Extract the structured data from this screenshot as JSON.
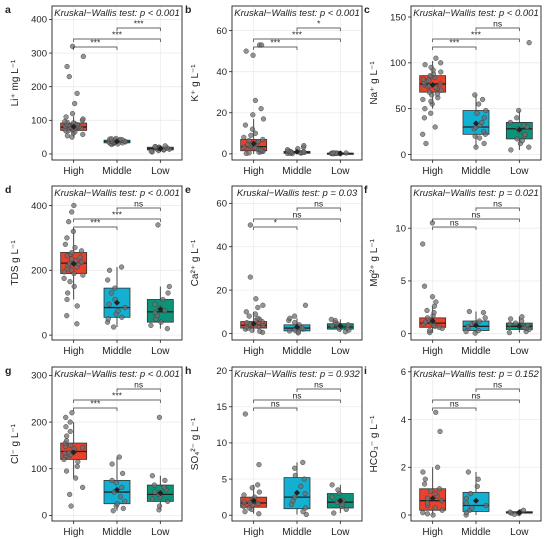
{
  "colors": {
    "High": "#e8412c",
    "Middle": "#14b0d2",
    "Low": "#0b9479"
  },
  "chart_data": [
    {
      "type": "box",
      "panel": "a",
      "ylabel": "Li⁺ mg L⁻¹",
      "test": "Kruskal−Wallis test: p < 0.001",
      "categories": [
        "High",
        "Middle",
        "Low"
      ],
      "yticks": [
        0,
        100,
        200,
        300,
        400
      ],
      "ylim": [
        -18,
        440
      ],
      "boxes": [
        {
          "q1": 70,
          "median": 80,
          "q3": 92,
          "wlo": 50,
          "whi": 112,
          "mean": 81
        },
        {
          "q1": 33,
          "median": 37,
          "q3": 41,
          "wlo": 28,
          "whi": 46,
          "mean": 37
        },
        {
          "q1": 12,
          "median": 16,
          "q3": 20,
          "wlo": 6,
          "whi": 25,
          "mean": 16
        }
      ],
      "points": [
        [
          62,
          66,
          68,
          70,
          72,
          74,
          75,
          76,
          78,
          79,
          80,
          81,
          82,
          83,
          85,
          86,
          87,
          88,
          90,
          92,
          94,
          96,
          100,
          104,
          110,
          120,
          58,
          54,
          50,
          150,
          180,
          230,
          260,
          290,
          320
        ],
        [
          28,
          30,
          31,
          32,
          33,
          34,
          35,
          36,
          36,
          37,
          38,
          38,
          39,
          40,
          41,
          42,
          43,
          44,
          45,
          46
        ],
        [
          6,
          8,
          10,
          12,
          13,
          14,
          15,
          16,
          17,
          18,
          18,
          19,
          20,
          21,
          22,
          24
        ]
      ],
      "brackets": [
        {
          "from": 0,
          "to": 1,
          "label": "***"
        },
        {
          "from": 0,
          "to": 2,
          "label": "***"
        },
        {
          "from": 1,
          "to": 2,
          "label": "***"
        }
      ]
    },
    {
      "type": "box",
      "panel": "b",
      "ylabel": "K⁺ g L⁻¹",
      "test": "Kruskal−Wallis test: p < 0.001",
      "categories": [
        "High",
        "Middle",
        "Low"
      ],
      "yticks": [
        0,
        20,
        40,
        60
      ],
      "ylim": [
        -3,
        72
      ],
      "boxes": [
        {
          "q1": 1.5,
          "median": 3.5,
          "q3": 7,
          "wlo": 0,
          "whi": 17,
          "mean": 5
        },
        {
          "q1": 0.3,
          "median": 0.7,
          "q3": 1.2,
          "wlo": 0.1,
          "whi": 2.5,
          "mean": 1
        },
        {
          "q1": 0.1,
          "median": 0.2,
          "q3": 0.3,
          "wlo": 0,
          "whi": 0.5,
          "mean": 0.2
        }
      ],
      "points": [
        [
          0.2,
          0.5,
          0.8,
          1,
          1.2,
          1.5,
          2,
          2.2,
          2.5,
          3,
          3.2,
          3.5,
          4,
          4.5,
          5,
          5.5,
          6,
          6.5,
          7,
          8,
          9,
          10,
          12,
          14,
          17,
          19,
          22,
          26,
          48,
          50,
          53,
          53
        ],
        [
          0.1,
          0.2,
          0.3,
          0.4,
          0.5,
          0.6,
          0.7,
          0.8,
          1,
          1.1,
          1.2,
          1.5,
          2,
          2.5,
          3.2,
          4
        ],
        [
          0.05,
          0.1,
          0.15,
          0.2,
          0.2,
          0.25,
          0.3,
          0.3,
          0.35,
          0.4,
          0.5
        ]
      ],
      "brackets": [
        {
          "from": 0,
          "to": 1,
          "label": "***"
        },
        {
          "from": 0,
          "to": 2,
          "label": "***"
        },
        {
          "from": 1,
          "to": 2,
          "label": "*"
        }
      ]
    },
    {
      "type": "box",
      "panel": "c",
      "ylabel": "Na⁺ g L⁻¹",
      "test": "Kruskal−Wallis test: p < 0.001",
      "categories": [
        "High",
        "Middle",
        "Low"
      ],
      "yticks": [
        0,
        50,
        100,
        150
      ],
      "ylim": [
        -6,
        162
      ],
      "boxes": [
        {
          "q1": 68,
          "median": 77,
          "q3": 86,
          "wlo": 50,
          "whi": 102,
          "mean": 76
        },
        {
          "q1": 22,
          "median": 30,
          "q3": 48,
          "wlo": 8,
          "whi": 65,
          "mean": 34
        },
        {
          "q1": 17,
          "median": 28,
          "q3": 35,
          "wlo": 5,
          "whi": 48,
          "mean": 27
        }
      ],
      "points": [
        [
          12,
          22,
          30,
          40,
          45,
          50,
          55,
          58,
          60,
          62,
          65,
          66,
          68,
          70,
          72,
          73,
          74,
          75,
          76,
          77,
          78,
          79,
          80,
          81,
          82,
          84,
          85,
          86,
          88,
          90,
          92,
          95,
          98,
          100,
          105
        ],
        [
          8,
          12,
          18,
          20,
          22,
          25,
          28,
          30,
          32,
          35,
          40,
          45,
          48,
          55,
          60,
          65
        ],
        [
          5,
          8,
          12,
          15,
          17,
          20,
          22,
          25,
          28,
          30,
          32,
          35,
          40,
          48,
          122
        ]
      ],
      "brackets": [
        {
          "from": 0,
          "to": 1,
          "label": "***"
        },
        {
          "from": 0,
          "to": 2,
          "label": "***"
        },
        {
          "from": 1,
          "to": 2,
          "label": "ns"
        }
      ]
    },
    {
      "type": "box",
      "panel": "d",
      "ylabel": "TDS g L⁻¹",
      "test": "Kruskal−Wallis test: p < 0.001",
      "categories": [
        "High",
        "Middle",
        "Low"
      ],
      "yticks": [
        0,
        200,
        400
      ],
      "ylim": [
        -15,
        460
      ],
      "boxes": [
        {
          "q1": 190,
          "median": 222,
          "q3": 255,
          "wlo": 110,
          "whi": 330,
          "mean": 220
        },
        {
          "q1": 55,
          "median": 85,
          "q3": 145,
          "wlo": 25,
          "whi": 210,
          "mean": 100
        },
        {
          "q1": 40,
          "median": 72,
          "q3": 110,
          "wlo": 20,
          "whi": 150,
          "mean": 80
        }
      ],
      "points": [
        [
          35,
          60,
          90,
          110,
          130,
          150,
          165,
          175,
          185,
          190,
          195,
          200,
          205,
          210,
          215,
          220,
          222,
          225,
          230,
          235,
          240,
          245,
          250,
          255,
          260,
          270,
          280,
          300,
          320,
          350,
          380,
          400
        ],
        [
          25,
          40,
          50,
          55,
          65,
          75,
          85,
          95,
          110,
          130,
          145,
          170,
          200,
          210
        ],
        [
          20,
          30,
          40,
          50,
          60,
          70,
          75,
          85,
          95,
          110,
          130,
          150,
          340
        ]
      ],
      "brackets": [
        {
          "from": 0,
          "to": 1,
          "label": "***"
        },
        {
          "from": 0,
          "to": 2,
          "label": "***"
        },
        {
          "from": 1,
          "to": 2,
          "label": "ns"
        }
      ]
    },
    {
      "type": "box",
      "panel": "e",
      "ylabel": "Ca²⁺ g L⁻¹",
      "test": "Kruskal−Wallis test: p = 0.03",
      "categories": [
        "High",
        "Middle",
        "Low"
      ],
      "yticks": [
        0,
        20,
        40,
        60
      ],
      "ylim": [
        -3,
        68
      ],
      "boxes": [
        {
          "q1": 2.5,
          "median": 3.8,
          "q3": 5.5,
          "wlo": 0.5,
          "whi": 10,
          "mean": 4.5
        },
        {
          "q1": 1.2,
          "median": 2.5,
          "q3": 4,
          "wlo": 0.3,
          "whi": 7,
          "mean": 3
        },
        {
          "q1": 2,
          "median": 3,
          "q3": 4.5,
          "wlo": 0.8,
          "whi": 6.5,
          "mean": 3.5
        }
      ],
      "points": [
        [
          0.5,
          1,
          1.5,
          2,
          2.5,
          3,
          3.2,
          3.5,
          3.8,
          4,
          4.2,
          4.5,
          5,
          5.5,
          6,
          6.5,
          7,
          8,
          9,
          10,
          12,
          13,
          16,
          26,
          50
        ],
        [
          0.3,
          0.8,
          1.2,
          1.5,
          2,
          2.5,
          3,
          3.5,
          4,
          5,
          6,
          7,
          8,
          13
        ],
        [
          0.8,
          1.5,
          2,
          2.5,
          3,
          3.5,
          4,
          4.5,
          5,
          6,
          6.5
        ]
      ],
      "brackets": [
        {
          "from": 0,
          "to": 1,
          "label": "*"
        },
        {
          "from": 0,
          "to": 2,
          "label": "ns"
        },
        {
          "from": 1,
          "to": 2,
          "label": "ns"
        }
      ]
    },
    {
      "type": "box",
      "panel": "f",
      "ylabel": "Mg²⁺ g L⁻¹",
      "test": "Kruskal−Wallis test: p = 0.021",
      "categories": [
        "High",
        "Middle",
        "Low"
      ],
      "yticks": [
        0,
        5,
        10
      ],
      "ylim": [
        -0.6,
        14
      ],
      "boxes": [
        {
          "q1": 0.6,
          "median": 1,
          "q3": 1.5,
          "wlo": 0.1,
          "whi": 2.6,
          "mean": 1.2
        },
        {
          "q1": 0.3,
          "median": 0.7,
          "q3": 1.2,
          "wlo": 0.05,
          "whi": 2.1,
          "mean": 0.8
        },
        {
          "q1": 0.4,
          "median": 0.7,
          "q3": 1,
          "wlo": 0.1,
          "whi": 1.6,
          "mean": 0.7
        }
      ],
      "points": [
        [
          0.1,
          0.3,
          0.5,
          0.6,
          0.7,
          0.8,
          0.9,
          1,
          1.1,
          1.2,
          1.3,
          1.5,
          1.7,
          2,
          2.2,
          2.6,
          3,
          3.5,
          4.5,
          8.5,
          10.5
        ],
        [
          0.05,
          0.2,
          0.3,
          0.5,
          0.7,
          0.9,
          1,
          1.2,
          1.5,
          2,
          2.1
        ],
        [
          0.1,
          0.2,
          0.4,
          0.5,
          0.6,
          0.7,
          0.8,
          0.9,
          1,
          1.2,
          1.4,
          1.6
        ]
      ],
      "brackets": [
        {
          "from": 0,
          "to": 1,
          "label": "ns"
        },
        {
          "from": 0,
          "to": 2,
          "label": "ns"
        },
        {
          "from": 1,
          "to": 2,
          "label": "ns"
        }
      ]
    },
    {
      "type": "box",
      "panel": "g",
      "ylabel": "Cl⁻ g L⁻¹",
      "test": "Kruskal−Wallis test: p < 0.001",
      "categories": [
        "High",
        "Middle",
        "Low"
      ],
      "yticks": [
        0,
        100,
        200,
        300
      ],
      "ylim": [
        -12,
        318
      ],
      "boxes": [
        {
          "q1": 120,
          "median": 137,
          "q3": 155,
          "wlo": 80,
          "whi": 200,
          "mean": 135
        },
        {
          "q1": 25,
          "median": 50,
          "q3": 75,
          "wlo": 10,
          "whi": 125,
          "mean": 55
        },
        {
          "q1": 30,
          "median": 45,
          "q3": 65,
          "wlo": 12,
          "whi": 85,
          "mean": 48
        }
      ],
      "points": [
        [
          20,
          45,
          60,
          80,
          95,
          105,
          115,
          120,
          125,
          128,
          130,
          133,
          135,
          137,
          140,
          143,
          145,
          148,
          150,
          155,
          160,
          170,
          180,
          190,
          200,
          210,
          220
        ],
        [
          10,
          15,
          20,
          25,
          30,
          40,
          50,
          60,
          70,
          75,
          90,
          110,
          125
        ],
        [
          12,
          20,
          30,
          35,
          40,
          45,
          50,
          55,
          60,
          65,
          75,
          85,
          210
        ]
      ],
      "brackets": [
        {
          "from": 0,
          "to": 1,
          "label": "***"
        },
        {
          "from": 0,
          "to": 2,
          "label": "***"
        },
        {
          "from": 1,
          "to": 2,
          "label": "ns"
        }
      ]
    },
    {
      "type": "box",
      "panel": "h",
      "ylabel": "SO₄²⁻ g L⁻¹",
      "test": "Kruskal−Wallis test: p = 0.932",
      "categories": [
        "High",
        "Middle",
        "Low"
      ],
      "yticks": [
        0,
        5,
        10,
        15,
        20
      ],
      "ylim": [
        -0.8,
        20.5
      ],
      "boxes": [
        {
          "q1": 1.1,
          "median": 1.7,
          "q3": 2.5,
          "wlo": 0.2,
          "whi": 4.2,
          "mean": 2
        },
        {
          "q1": 0.9,
          "median": 2.5,
          "q3": 5.2,
          "wlo": 0.1,
          "whi": 7.3,
          "mean": 3.1
        },
        {
          "q1": 1,
          "median": 1.8,
          "q3": 3,
          "wlo": 0.3,
          "whi": 4.2,
          "mean": 2
        }
      ],
      "points": [
        [
          0.2,
          0.5,
          0.8,
          1,
          1.2,
          1.4,
          1.6,
          1.7,
          1.8,
          2,
          2.2,
          2.5,
          2.8,
          3.2,
          3.8,
          4.2,
          7,
          14
        ],
        [
          0.1,
          0.5,
          1,
          1.5,
          2,
          2.5,
          3,
          4,
          5,
          5.5,
          6.5,
          7.3
        ],
        [
          0.3,
          0.8,
          1.2,
          1.5,
          1.8,
          2,
          2.5,
          3,
          3.5,
          4.2
        ]
      ],
      "brackets": [
        {
          "from": 0,
          "to": 1,
          "label": "ns"
        },
        {
          "from": 0,
          "to": 2,
          "label": "ns"
        },
        {
          "from": 1,
          "to": 2,
          "label": "ns"
        }
      ]
    },
    {
      "type": "box",
      "panel": "i",
      "ylabel": "HCO₃⁻ g L⁻¹",
      "test": "Kruskal−Wallis test: p = 0.152",
      "categories": [
        "High",
        "Middle",
        "Low"
      ],
      "yticks": [
        0,
        2,
        4,
        6
      ],
      "ylim": [
        -0.25,
        6.2
      ],
      "boxes": [
        {
          "q1": 0.2,
          "median": 0.6,
          "q3": 1.1,
          "wlo": 0,
          "whi": 2,
          "mean": 0.7
        },
        {
          "q1": 0.15,
          "median": 0.4,
          "q3": 0.95,
          "wlo": 0,
          "whi": 1.8,
          "mean": 0.6
        },
        {
          "q1": 0.08,
          "median": 0.1,
          "q3": 0.14,
          "wlo": 0.03,
          "whi": 0.2,
          "mean": 0.11
        }
      ],
      "points": [
        [
          0,
          0.05,
          0.1,
          0.2,
          0.3,
          0.4,
          0.5,
          0.6,
          0.7,
          0.8,
          0.9,
          1,
          1.1,
          1.3,
          1.5,
          1.8,
          2,
          3.5,
          4.3
        ],
        [
          0,
          0.1,
          0.2,
          0.3,
          0.4,
          0.5,
          0.7,
          0.9,
          1.2,
          1.5,
          1.8
        ],
        [
          0.03,
          0.06,
          0.08,
          0.1,
          0.12,
          0.14,
          0.2
        ]
      ],
      "brackets": [
        {
          "from": 0,
          "to": 1,
          "label": "ns"
        },
        {
          "from": 0,
          "to": 2,
          "label": "ns"
        },
        {
          "from": 1,
          "to": 2,
          "label": "ns"
        }
      ]
    }
  ]
}
